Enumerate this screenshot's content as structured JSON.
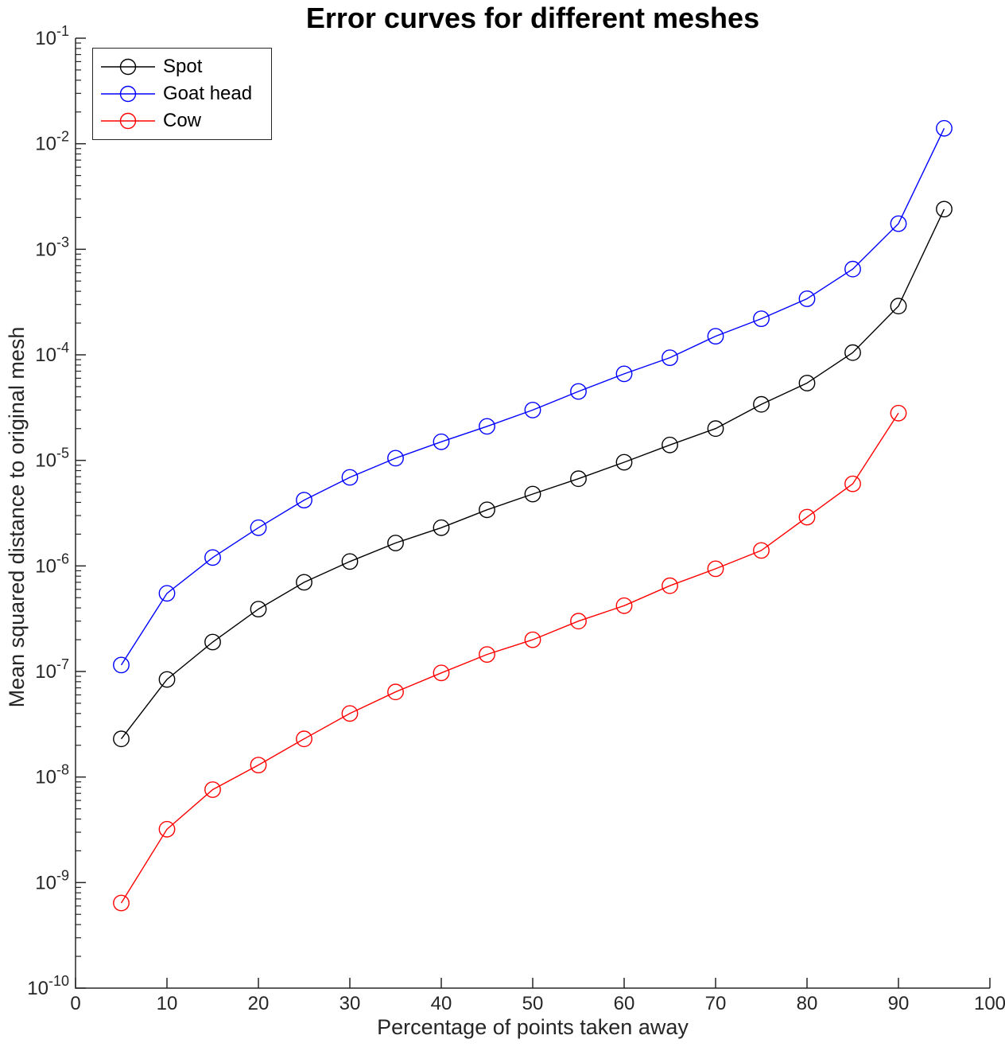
{
  "chart_data": {
    "type": "line",
    "title": "Error curves for different meshes",
    "xlabel": "Percentage of points taken away",
    "ylabel": "Mean squared distance to original mesh",
    "x_ticks": [
      0,
      10,
      20,
      30,
      40,
      50,
      60,
      70,
      80,
      90,
      100
    ],
    "y_tick_base": "10",
    "y_tick_exponents": [
      -1,
      -2,
      -3,
      -4,
      -5,
      -6,
      -7,
      -8,
      -9,
      -10
    ],
    "xlim": [
      0,
      100
    ],
    "ylim_log10": [
      -10,
      -1
    ],
    "grid": false,
    "legend_position": "top-left",
    "marker": "circle",
    "axis_color": "#262626",
    "background": "#ffffff",
    "series": [
      {
        "name": "Spot",
        "color": "#000000",
        "x": [
          5,
          10,
          15,
          20,
          25,
          30,
          35,
          40,
          45,
          50,
          55,
          60,
          65,
          70,
          75,
          80,
          85,
          90,
          95
        ],
        "y": [
          2.3e-08,
          8.4e-08,
          1.9e-07,
          3.9e-07,
          7e-07,
          1.1e-06,
          1.65e-06,
          2.3e-06,
          3.4e-06,
          4.8e-06,
          6.7e-06,
          9.6e-06,
          1.4e-05,
          2e-05,
          3.4e-05,
          5.4e-05,
          0.000105,
          0.00029,
          0.0024
        ]
      },
      {
        "name": "Goat head",
        "color": "#0000ff",
        "x": [
          5,
          10,
          15,
          20,
          25,
          30,
          35,
          40,
          45,
          50,
          55,
          60,
          65,
          70,
          75,
          80,
          85,
          90,
          95
        ],
        "y": [
          1.15e-07,
          5.5e-07,
          1.2e-06,
          2.3e-06,
          4.2e-06,
          6.9e-06,
          1.05e-05,
          1.5e-05,
          2.1e-05,
          3e-05,
          4.5e-05,
          6.6e-05,
          9.4e-05,
          0.00015,
          0.00022,
          0.00034,
          0.00065,
          0.00175,
          0.014
        ]
      },
      {
        "name": "Cow",
        "color": "#ff0000",
        "x": [
          5,
          10,
          15,
          20,
          25,
          30,
          35,
          40,
          45,
          50,
          55,
          60,
          65,
          70,
          75,
          80,
          85,
          90
        ],
        "y": [
          6.4e-10,
          3.2e-09,
          7.6e-09,
          1.3e-08,
          2.3e-08,
          4e-08,
          6.4e-08,
          9.7e-08,
          1.45e-07,
          2e-07,
          3e-07,
          4.2e-07,
          6.5e-07,
          9.4e-07,
          1.4e-06,
          2.9e-06,
          6e-06,
          2.8e-05
        ]
      }
    ]
  }
}
